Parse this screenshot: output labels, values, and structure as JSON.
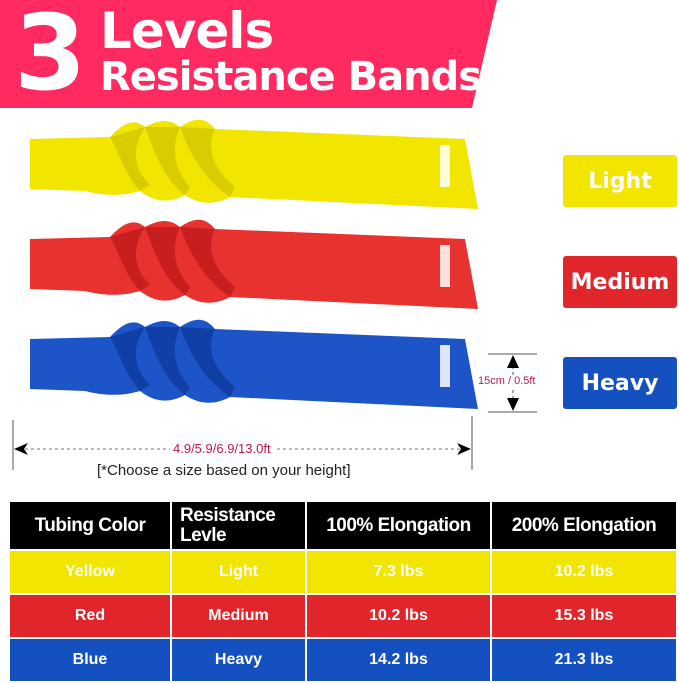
{
  "header": {
    "number": "3",
    "line1": "Levels",
    "line2": "Resistance Bands",
    "color": "#ff2a5f"
  },
  "bands": [
    {
      "level": "Light",
      "color": "#f2e600",
      "shade": "#d9cc00"
    },
    {
      "level": "Medium",
      "color": "#e8322f",
      "shade": "#c71f1f"
    },
    {
      "level": "Heavy",
      "color": "#1d55c8",
      "shade": "#1040a6"
    }
  ],
  "dimensions": {
    "width": "15cm / 0.5ft",
    "length": "4.9/5.9/6.9/13.0ft",
    "note": "[*Choose a size based on your height]",
    "color": "#c0174a"
  },
  "table": {
    "headers": [
      "Tubing Color",
      "Resistance Levle",
      "100% Elongation",
      "200% Elongation"
    ],
    "rows": [
      [
        "Yellow",
        "Light",
        "7.3 lbs",
        "10.2 lbs"
      ],
      [
        "Red",
        "Medium",
        "10.2 lbs",
        "15.3 lbs"
      ],
      [
        "Blue",
        "Heavy",
        "14.2 lbs",
        "21.3 lbs"
      ]
    ]
  }
}
